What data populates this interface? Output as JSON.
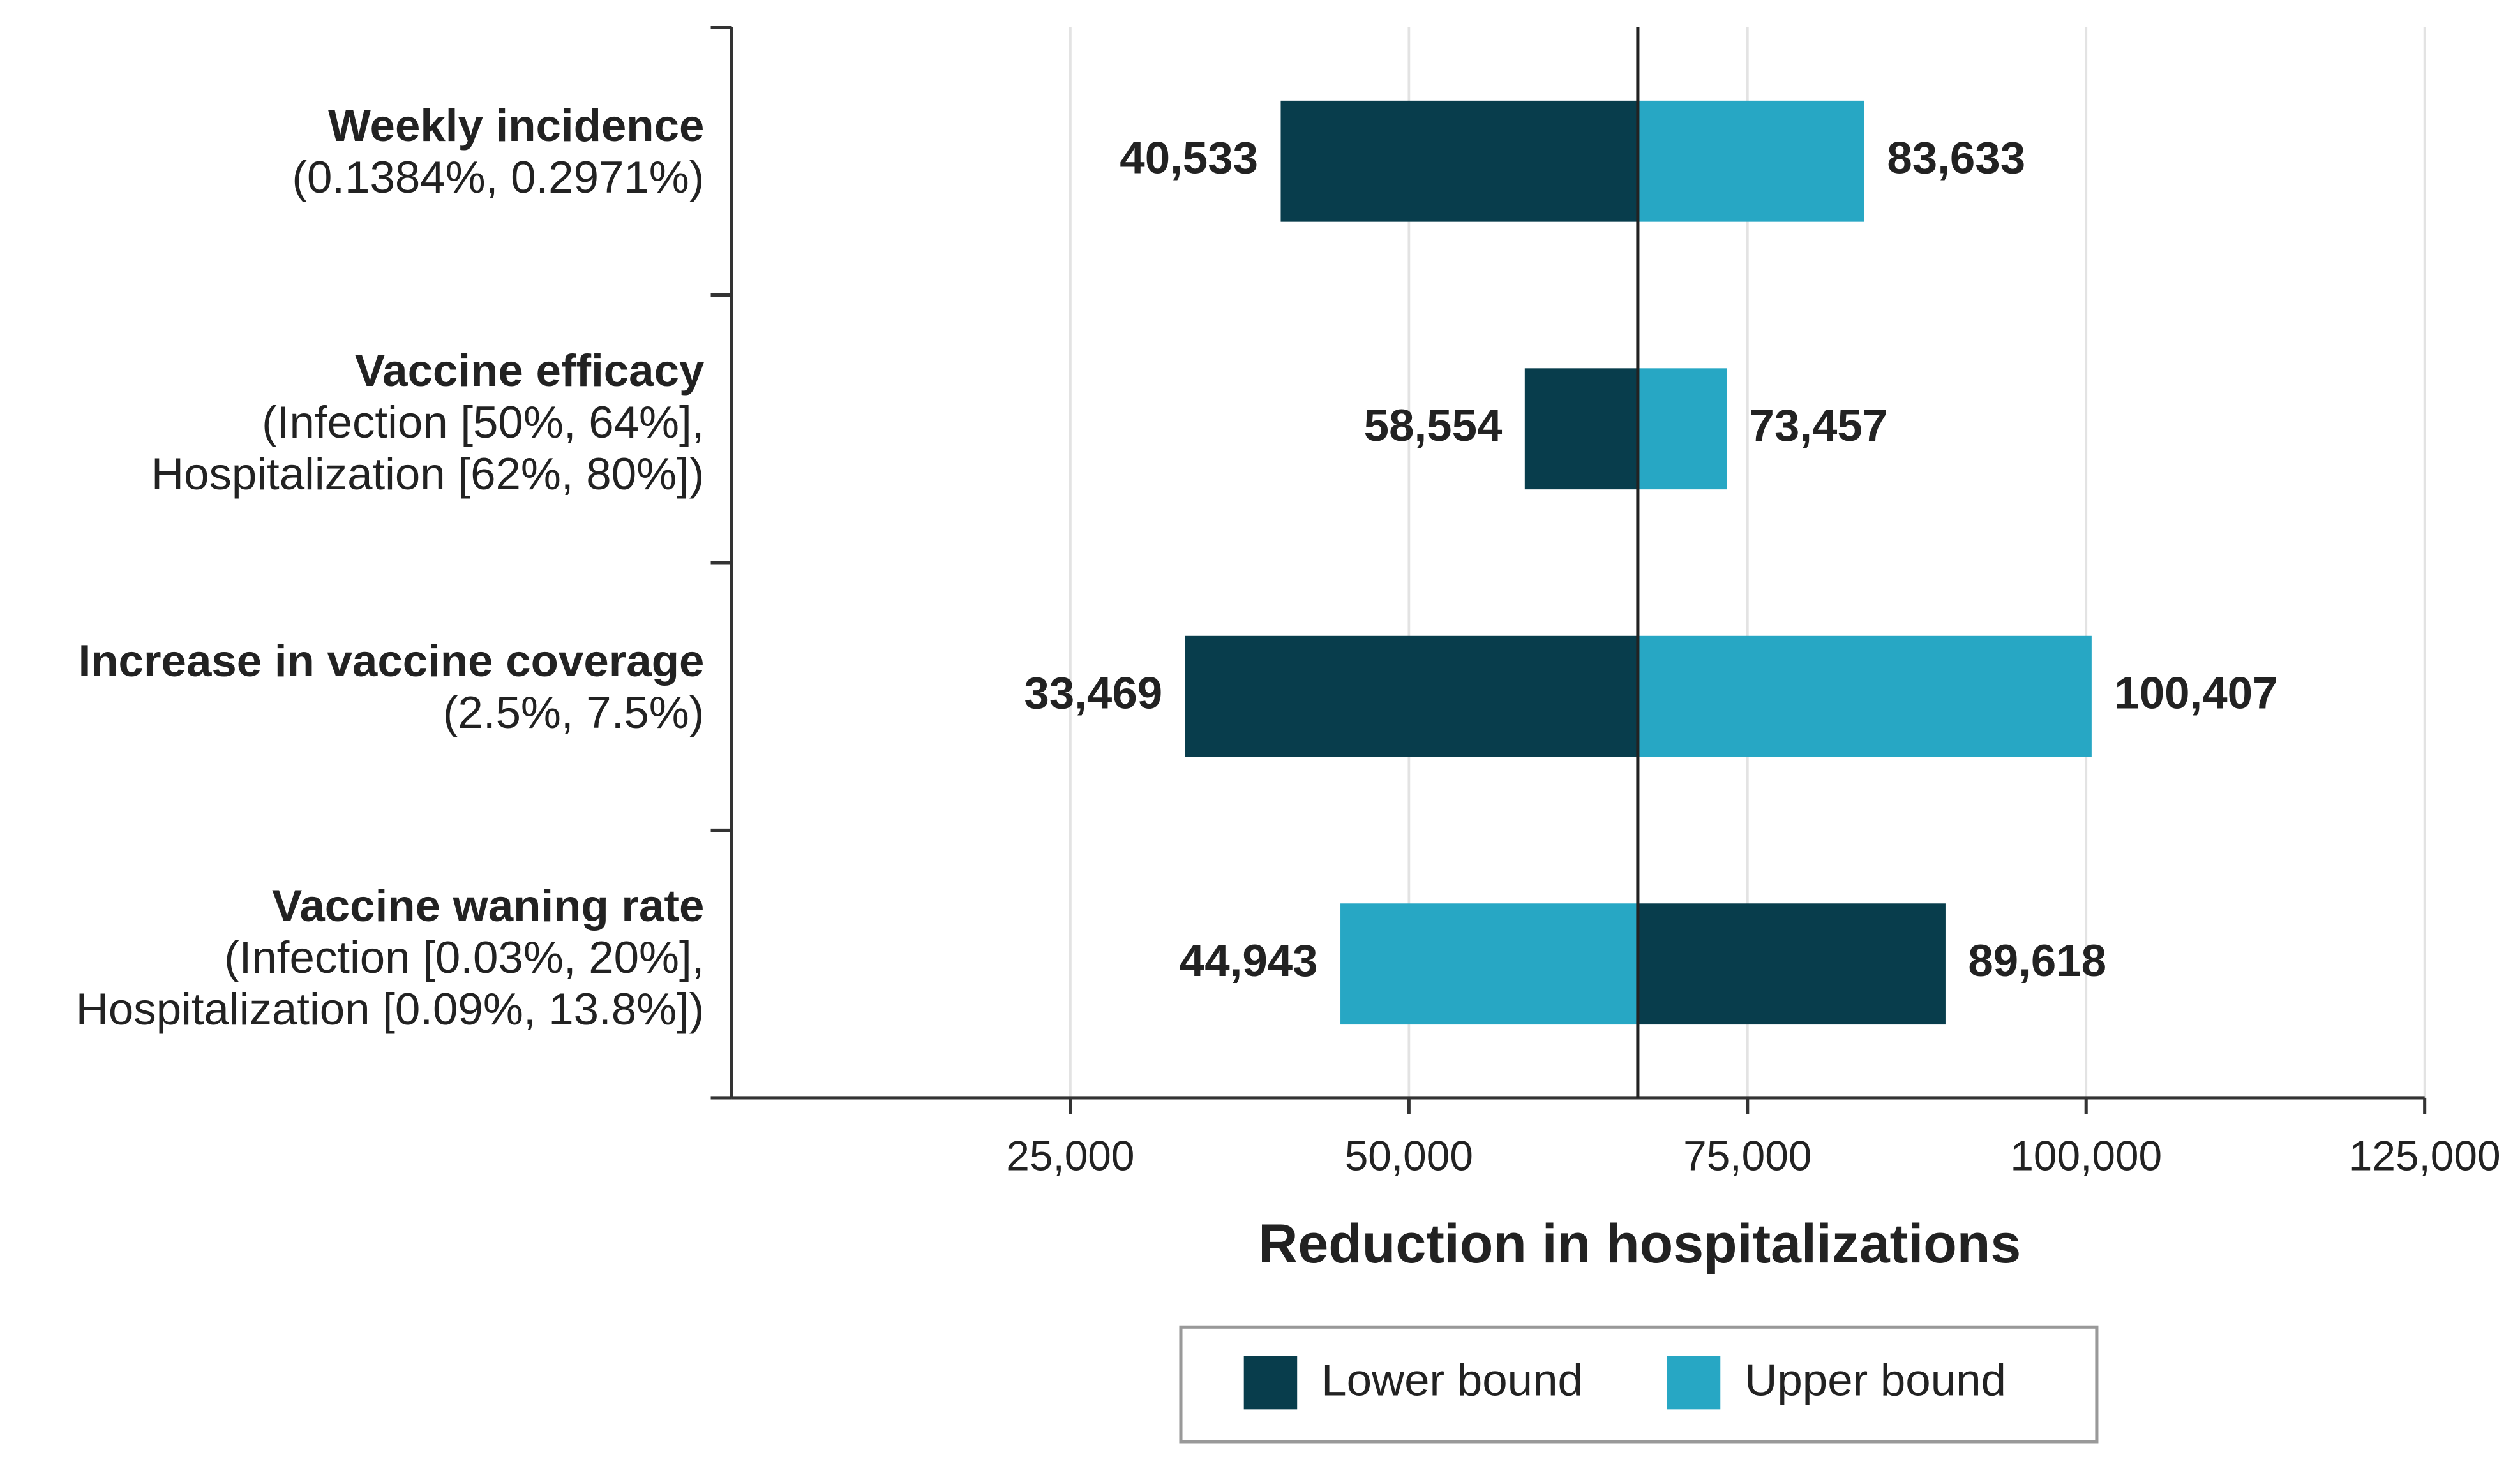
{
  "chart_data": {
    "type": "tornado",
    "categories": [
      "Weekly incidence",
      "Vaccine efficacy",
      "Increase in vaccine coverage",
      "Vaccine waning rate"
    ],
    "sublabels": [
      [
        "(0.1384%, 0.2971%)"
      ],
      [
        "(Infection [50%, 64%],",
        "Hospitalization [62%, 80%])"
      ],
      [
        "(2.5%, 7.5%)"
      ],
      [
        "(Infection [0.03%, 20%],",
        "Hospitalization [0.09%, 13.8%])"
      ]
    ],
    "base_value": 66900,
    "series": [
      {
        "name": "Lower bound",
        "color": "#083d4c",
        "values": [
          40533,
          58554,
          33469,
          89618
        ],
        "value_labels": [
          "40,533",
          "58,554",
          "33,469",
          "89,618"
        ]
      },
      {
        "name": "Upper bound",
        "color": "#27a7c4",
        "values": [
          83633,
          73457,
          100407,
          44943
        ],
        "value_labels": [
          "83,633",
          "73,457",
          "100,407",
          "44,943"
        ]
      }
    ],
    "x_label": "Reduction in hospitalizations",
    "xlim": [
      0,
      125000
    ],
    "xticks": [
      {
        "value": 25000,
        "label": "25,000"
      },
      {
        "value": 50000,
        "label": "50,000"
      },
      {
        "value": 75000,
        "label": "75,000"
      },
      {
        "value": 100000,
        "label": "100,000"
      },
      {
        "value": 125000,
        "label": "125,000"
      }
    ],
    "grid": true,
    "legend": "bottom"
  }
}
